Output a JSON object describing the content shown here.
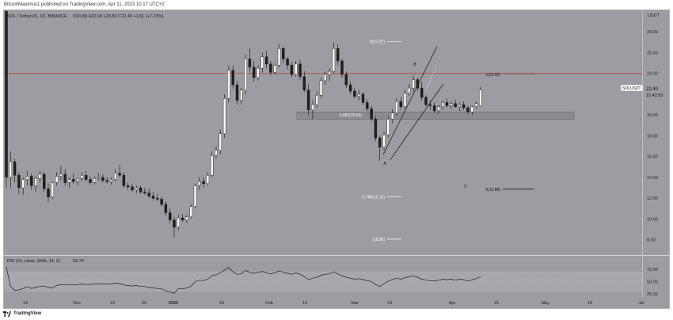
{
  "header": {
    "publish_line": "BitcoinMaximus1 published on TradingView.com, Apr 11, 2023 10:17 UTC+2"
  },
  "legend": {
    "symbol": "SOL / TetherUS, 1D, BINANCE",
    "ohlc": "O20.89 H22.68 L20.82 C22.40 +1.51 (+7.23%)"
  },
  "footer": {
    "logo_text": "TradingView"
  },
  "colors": {
    "background": "#9b9da2",
    "up_candle": "#ffffff",
    "down_candle": "#1f1f1f",
    "resistance_line": "#c0392b",
    "rsi_line": "#1f1f1f",
    "fib_line": "#ffffff"
  },
  "chart_data": [
    {
      "type": "candlestick",
      "title": "SOL / TetherUS, 1D, BINANCE",
      "y_axis_label": "USDT",
      "ylim": [
        6.6,
        30.0
      ],
      "y_ticks": [
        "28.00",
        "26.00",
        "24.00",
        "22.00",
        "20.00",
        "18.00",
        "16.00",
        "14.00",
        "12.00",
        "10.00",
        "8.00"
      ],
      "x_ticks": [
        "14",
        "Dec",
        "12",
        "22",
        "2023",
        "16",
        "Feb",
        "13",
        "Mar",
        "13",
        "Apr",
        "15",
        "May",
        "15",
        "Jul"
      ],
      "last_price": "22.40",
      "last_price_label": "SOLUSDT",
      "countdown": "15:42:50",
      "resistance_level": 24.0,
      "support_zone": [
        19.6,
        20.3
      ],
      "fib_levels": [
        {
          "label": "0(27.07)",
          "value": 27.07
        },
        {
          "label": "0.382(20.02)",
          "value": 20.02
        },
        {
          "label": "0.786(12.13)",
          "value": 12.13
        },
        {
          "label": "1(8.06)",
          "value": 8.06
        }
      ],
      "fib_projection": [
        {
          "label": "1(23.92)",
          "value": 23.92
        },
        {
          "label": "0(12.86)",
          "value": 12.86
        }
      ],
      "wave_labels": [
        {
          "label": "A",
          "value": 15.6
        },
        {
          "label": "B",
          "value": 24.6
        },
        {
          "label": "C",
          "value": 12.9
        }
      ],
      "ohlc": [
        [
          30,
          38,
          13,
          14
        ],
        [
          14,
          16.5,
          13,
          15.5
        ],
        [
          15.5,
          15.8,
          13.5,
          14.2
        ],
        [
          14.2,
          14.5,
          12.4,
          13
        ],
        [
          13,
          14,
          12.3,
          13.8
        ],
        [
          13.8,
          14.6,
          13.2,
          14.1
        ],
        [
          14.1,
          14.4,
          12.8,
          13.2
        ],
        [
          13.2,
          14.1,
          12.6,
          13.9
        ],
        [
          13.9,
          14.6,
          13.5,
          14.3
        ],
        [
          14.3,
          14.5,
          12.6,
          12.9
        ],
        [
          12.9,
          13.4,
          11.6,
          12.1
        ],
        [
          12.1,
          13.6,
          11.9,
          13.5
        ],
        [
          13.5,
          14.5,
          13.2,
          14.1
        ],
        [
          14.1,
          15.1,
          13.7,
          14.3
        ],
        [
          14.3,
          14.8,
          13.2,
          13.5
        ],
        [
          13.5,
          14.0,
          13.0,
          13.8
        ],
        [
          13.8,
          14.4,
          13.4,
          13.6
        ],
        [
          13.6,
          14.0,
          13.2,
          13.9
        ],
        [
          13.9,
          14.5,
          13.6,
          14.2
        ],
        [
          14.2,
          14.6,
          13.6,
          13.8
        ],
        [
          13.8,
          14.1,
          13.3,
          13.5
        ],
        [
          13.5,
          14.1,
          13.3,
          13.9
        ],
        [
          13.9,
          14.4,
          13.7,
          14.0
        ],
        [
          14.0,
          14.3,
          13.5,
          13.7
        ],
        [
          13.7,
          14.0,
          13.4,
          13.6
        ],
        [
          13.6,
          14.0,
          13.3,
          13.8
        ],
        [
          13.8,
          14.8,
          13.6,
          14.4
        ],
        [
          14.4,
          15.2,
          14.0,
          14.2
        ],
        [
          14.2,
          14.5,
          13.0,
          13.2
        ],
        [
          13.2,
          13.5,
          12.8,
          13.1
        ],
        [
          13.1,
          13.4,
          12.6,
          12.8
        ],
        [
          12.8,
          13.2,
          12.5,
          13.0
        ],
        [
          13.0,
          13.2,
          12.4,
          12.6
        ],
        [
          12.6,
          13.0,
          12.3,
          12.5
        ],
        [
          12.5,
          12.9,
          12.0,
          12.2
        ],
        [
          12.2,
          12.6,
          11.8,
          12.0
        ],
        [
          12.0,
          12.4,
          11.7,
          11.9
        ],
        [
          11.9,
          12.1,
          11.2,
          11.4
        ],
        [
          11.4,
          11.7,
          10.3,
          10.6
        ],
        [
          10.6,
          11.0,
          9.6,
          9.9
        ],
        [
          9.9,
          10.2,
          8.2,
          9.2
        ],
        [
          9.2,
          10.4,
          8.9,
          10.1
        ],
        [
          10.1,
          10.5,
          9.7,
          9.9
        ],
        [
          9.9,
          10.4,
          9.6,
          10.2
        ],
        [
          10.2,
          11.4,
          10.0,
          11.2
        ],
        [
          11.2,
          13.4,
          11.0,
          13.2
        ],
        [
          13.2,
          14.0,
          12.8,
          13.6
        ],
        [
          13.6,
          14.0,
          13.0,
          13.4
        ],
        [
          13.4,
          14.5,
          13.2,
          14.2
        ],
        [
          14.2,
          16.5,
          14.0,
          16.1
        ],
        [
          16.1,
          17.0,
          15.8,
          16.6
        ],
        [
          16.6,
          18.6,
          16.2,
          18.2
        ],
        [
          18.2,
          22.0,
          17.8,
          21.6
        ],
        [
          21.6,
          24.8,
          21.2,
          24.3
        ],
        [
          24.3,
          24.8,
          22.5,
          22.9
        ],
        [
          22.9,
          23.3,
          21.0,
          21.4
        ],
        [
          21.4,
          22.6,
          21.0,
          22.4
        ],
        [
          22.4,
          25.8,
          22.0,
          25.4
        ],
        [
          25.4,
          26.4,
          24.2,
          24.6
        ],
        [
          24.6,
          25.2,
          23.2,
          23.6
        ],
        [
          23.6,
          24.8,
          23.3,
          24.5
        ],
        [
          24.5,
          26.0,
          24.1,
          25.6
        ],
        [
          25.6,
          26.2,
          24.5,
          24.9
        ],
        [
          24.9,
          25.2,
          23.8,
          24.1
        ],
        [
          24.1,
          25.0,
          23.9,
          24.8
        ],
        [
          24.8,
          26.8,
          24.6,
          26.4
        ],
        [
          26.4,
          26.6,
          25.0,
          25.4
        ],
        [
          25.4,
          25.6,
          24.4,
          24.8
        ],
        [
          24.8,
          25.1,
          23.6,
          23.9
        ],
        [
          23.9,
          25.2,
          23.7,
          24.9
        ],
        [
          24.9,
          25.3,
          23.4,
          23.7
        ],
        [
          23.7,
          24.2,
          22.2,
          22.4
        ],
        [
          22.4,
          23.0,
          20.0,
          20.5
        ],
        [
          20.5,
          21.4,
          19.6,
          21.0
        ],
        [
          21.0,
          22.3,
          20.6,
          21.9
        ],
        [
          21.9,
          23.6,
          21.6,
          23.3
        ],
        [
          23.3,
          24.2,
          22.9,
          23.9
        ],
        [
          23.9,
          24.5,
          23.3,
          24.2
        ],
        [
          24.2,
          27.0,
          24.0,
          26.4
        ],
        [
          26.4,
          26.8,
          24.8,
          25.2
        ],
        [
          25.2,
          25.4,
          23.6,
          23.9
        ],
        [
          23.9,
          24.2,
          22.6,
          22.9
        ],
        [
          22.9,
          23.2,
          22.0,
          22.3
        ],
        [
          22.3,
          22.6,
          21.6,
          21.8
        ],
        [
          21.8,
          22.4,
          21.4,
          22.0
        ],
        [
          22.0,
          22.2,
          21.0,
          21.2
        ],
        [
          21.2,
          21.5,
          20.4,
          20.6
        ],
        [
          20.6,
          20.9,
          19.4,
          19.6
        ],
        [
          19.6,
          19.9,
          17.5,
          17.8
        ],
        [
          17.8,
          18.0,
          15.6,
          16.9
        ],
        [
          16.9,
          18.4,
          16.6,
          18.1
        ],
        [
          18.1,
          19.9,
          17.8,
          19.6
        ],
        [
          19.6,
          20.6,
          19.2,
          20.2
        ],
        [
          20.2,
          21.6,
          19.9,
          21.3
        ],
        [
          21.3,
          21.7,
          20.5,
          20.8
        ],
        [
          20.8,
          22.4,
          20.6,
          22.1
        ],
        [
          22.1,
          23.0,
          21.8,
          22.6
        ],
        [
          22.6,
          23.8,
          22.2,
          23.4
        ],
        [
          23.4,
          23.6,
          22.3,
          22.6
        ],
        [
          22.6,
          23.2,
          21.4,
          21.7
        ],
        [
          21.7,
          21.9,
          20.8,
          21.0
        ],
        [
          21.0,
          21.4,
          20.5,
          20.9
        ],
        [
          20.9,
          21.2,
          20.2,
          20.4
        ],
        [
          20.4,
          21.0,
          20.1,
          20.8
        ],
        [
          20.8,
          21.4,
          20.5,
          21.2
        ],
        [
          21.2,
          21.6,
          20.7,
          20.9
        ],
        [
          20.9,
          21.3,
          20.6,
          21.1
        ],
        [
          21.1,
          21.5,
          20.7,
          20.8
        ],
        [
          20.8,
          21.2,
          20.4,
          21.0
        ],
        [
          21.0,
          21.3,
          20.5,
          20.7
        ],
        [
          20.7,
          20.9,
          20.1,
          20.3
        ],
        [
          20.3,
          20.9,
          20.0,
          20.8
        ],
        [
          20.8,
          21.3,
          20.6,
          21.1
        ],
        [
          20.89,
          22.68,
          20.82,
          22.4
        ]
      ]
    },
    {
      "type": "line",
      "title": "RSI (14, close, SMA, 14, 2)",
      "last_value": "59.79",
      "ylim": [
        20,
        85
      ],
      "y_ticks": [
        "75.00",
        "50.00",
        "25.00"
      ],
      "band": [
        30,
        70
      ],
      "values": [
        80,
        40,
        32,
        33,
        36,
        40,
        36,
        38,
        40,
        41,
        38,
        37,
        42,
        44,
        43,
        44,
        43,
        44,
        45,
        44,
        44,
        45,
        46,
        45,
        45,
        45,
        47,
        46,
        43,
        42,
        41,
        42,
        40,
        40,
        38,
        37,
        36,
        35,
        31,
        29,
        26,
        36,
        35,
        37,
        40,
        50,
        53,
        52,
        55,
        62,
        64,
        68,
        74,
        79,
        70,
        65,
        66,
        73,
        69,
        67,
        69,
        71,
        68,
        66,
        68,
        72,
        69,
        67,
        65,
        68,
        65,
        60,
        54,
        57,
        59,
        63,
        65,
        66,
        70,
        66,
        62,
        59,
        57,
        55,
        56,
        54,
        52,
        50,
        44,
        40,
        46,
        51,
        54,
        57,
        55,
        58,
        60,
        62,
        59,
        55,
        53,
        52,
        51,
        53,
        55,
        54,
        55,
        53,
        55,
        54,
        51,
        54,
        56,
        60
      ]
    }
  ]
}
